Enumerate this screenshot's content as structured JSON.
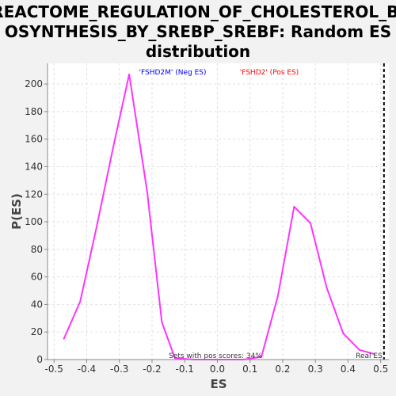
{
  "chart_data": {
    "type": "line",
    "title_lines": [
      "REACTOME_REGULATION_OF_CHOLESTEROL_BI",
      "OSYNTHESIS_BY_SREBP_SREBF: Random ES",
      "distribution"
    ],
    "xlabel": "ES",
    "ylabel": "P(ES)",
    "xlim": [
      -0.52,
      0.525
    ],
    "ylim": [
      0,
      215
    ],
    "x_ticks": [
      -0.5,
      -0.4,
      -0.3,
      -0.2,
      -0.1,
      0.0,
      0.1,
      0.2,
      0.3,
      0.4,
      0.5
    ],
    "x_tick_labels": [
      "-0.5",
      "-0.4",
      "-0.3",
      "-0.2",
      "-0.1",
      "0.0",
      "0.1",
      "0.2",
      "0.3",
      "0.4",
      "0.5"
    ],
    "y_ticks": [
      0,
      20,
      40,
      60,
      80,
      100,
      120,
      140,
      160,
      180,
      200
    ],
    "y_tick_labels": [
      "0",
      "20",
      "40",
      "60",
      "80",
      "100",
      "120",
      "140",
      "160",
      "180",
      "200"
    ],
    "grid": true,
    "legend": [
      {
        "label": "'FSHD2M' (Neg ES)",
        "color": "#0000ff"
      },
      {
        "label": "'FSHD2' (Pos ES)",
        "color": "#ff0000"
      }
    ],
    "series": [
      {
        "color": "#ff33ff",
        "points": [
          [
            -0.47,
            15
          ],
          [
            -0.42,
            42
          ],
          [
            -0.37,
            96
          ],
          [
            -0.32,
            153
          ],
          [
            -0.27,
            207
          ],
          [
            -0.215,
            122
          ],
          [
            -0.17,
            27
          ],
          [
            -0.13,
            1
          ],
          [
            -0.07,
            0
          ],
          [
            0.0,
            0
          ],
          [
            0.08,
            0
          ],
          [
            0.135,
            2
          ],
          [
            0.185,
            46
          ],
          [
            0.235,
            111
          ],
          [
            0.285,
            99
          ],
          [
            0.335,
            52
          ],
          [
            0.385,
            19
          ],
          [
            0.435,
            7
          ],
          [
            0.48,
            4
          ]
        ]
      }
    ],
    "real_es": {
      "x": 0.51,
      "label": "Real ES"
    },
    "note": "Sets with pos scores: 34%"
  }
}
